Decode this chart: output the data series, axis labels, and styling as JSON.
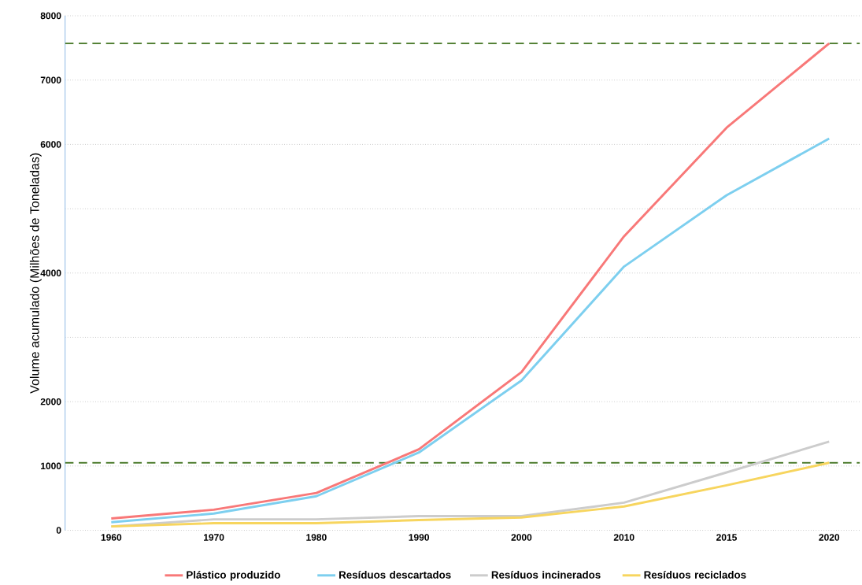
{
  "chart_data": {
    "type": "line",
    "ylabel": "Volume acumulado (Milhões de Toneladas)",
    "categories": [
      "1960",
      "1970",
      "1980",
      "1990",
      "2000",
      "2010",
      "2015",
      "2020"
    ],
    "series": [
      {
        "name": "Plástico produzido",
        "color": "#f87878",
        "values": [
          185,
          320,
          580,
          1260,
          2460,
          4570,
          6260,
          7570
        ]
      },
      {
        "name": "Resíduos descartados",
        "color": "#7dcfef",
        "values": [
          125,
          260,
          530,
          1210,
          2330,
          4100,
          5210,
          6090
        ]
      },
      {
        "name": "Resíduos incinerados",
        "color": "#cccccc",
        "values": [
          60,
          170,
          170,
          220,
          220,
          430,
          900,
          1380
        ]
      },
      {
        "name": "Resíduos reciclados",
        "color": "#f7d55e",
        "values": [
          60,
          110,
          110,
          160,
          200,
          370,
          700,
          1050
        ]
      }
    ],
    "ylim": [
      0,
      8000
    ],
    "yticks": [
      0,
      1000,
      2000,
      {
        "value": 3000,
        "label": null
      },
      4000,
      {
        "value": 5000,
        "label": null
      },
      6000,
      7000,
      8000
    ],
    "grid": "y",
    "legend": "bottom",
    "marker": "none",
    "line_style": "solid",
    "ref_lines": [
      {
        "axis": "y",
        "value": 7570,
        "color": "#4a7a2a",
        "line_style": "dashed"
      },
      {
        "axis": "y",
        "value": 1050,
        "color": "#4a7a2a",
        "line_style": "dashed"
      }
    ]
  }
}
